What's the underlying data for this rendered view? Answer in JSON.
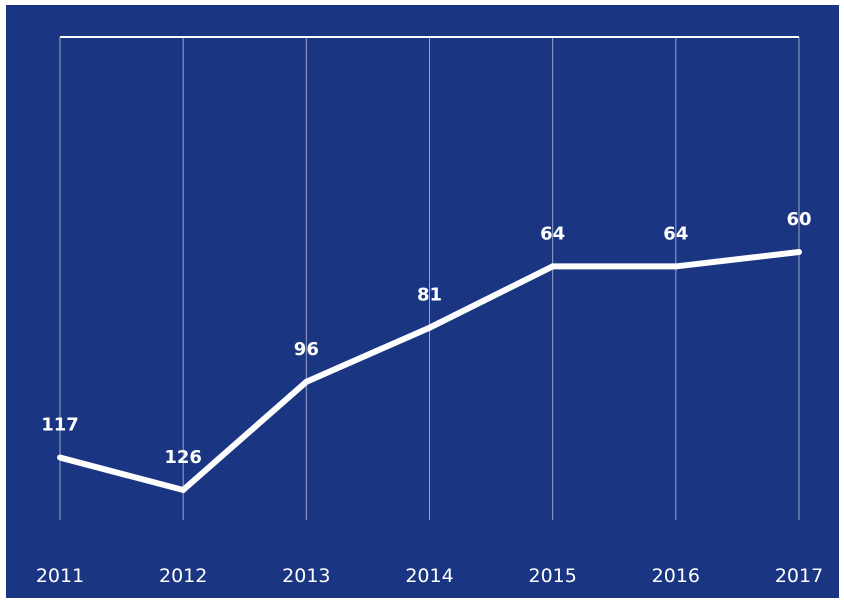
{
  "chart_data": {
    "type": "line",
    "categories": [
      "2011",
      "2012",
      "2013",
      "2014",
      "2015",
      "2016",
      "2017"
    ],
    "values": [
      117,
      126,
      96,
      81,
      64,
      64,
      60
    ],
    "y_axis_inverted": true,
    "ylim": [
      40,
      135
    ],
    "grid": "vertical",
    "legend": "none",
    "title": "",
    "xlabel": "",
    "ylabel": ""
  },
  "colors": {
    "background": "#1a3682",
    "line": "#ffffff",
    "grid": "#ffffff"
  }
}
